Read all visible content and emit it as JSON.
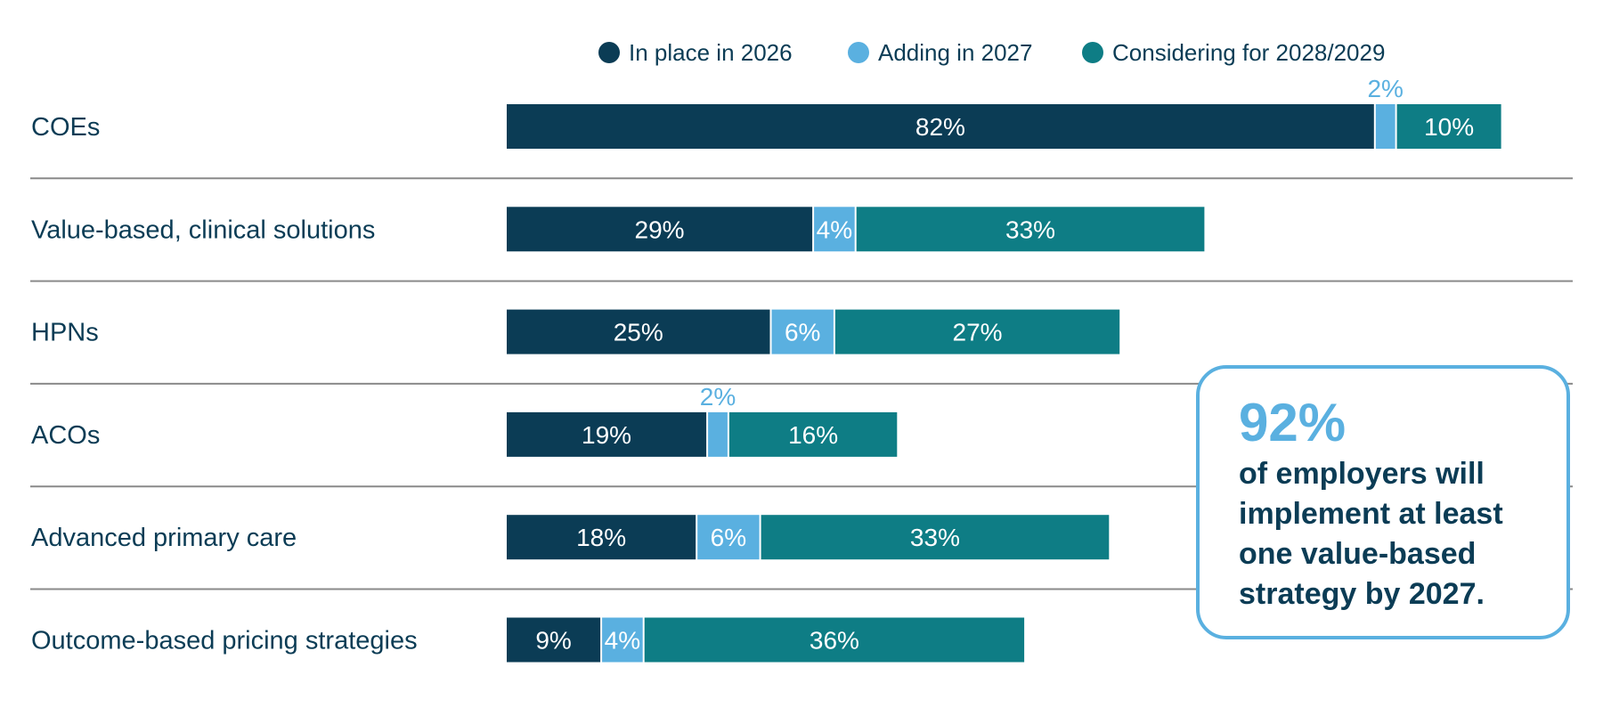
{
  "chart_data": {
    "type": "bar",
    "orientation": "horizontal",
    "stacked": true,
    "categories": [
      "COEs",
      "Value-based, clinical solutions",
      "HPNs",
      "ACOs",
      "Advanced primary care",
      "Outcome-based pricing strategies"
    ],
    "series": [
      {
        "name": "In place in 2026",
        "color": "#0b3c55",
        "values": [
          82,
          29,
          25,
          19,
          18,
          9
        ]
      },
      {
        "name": "Adding in 2027",
        "color": "#5ab0e0",
        "values": [
          2,
          4,
          6,
          2,
          6,
          4
        ]
      },
      {
        "name": "Considering for 2028/2029",
        "color": "#0e7d85",
        "values": [
          10,
          33,
          27,
          16,
          33,
          36
        ]
      }
    ],
    "value_suffix": "%",
    "legend": "top",
    "grid": false
  },
  "callout": {
    "value": "92%",
    "text": "of employers will implement at least one value-based strategy by 2027."
  }
}
